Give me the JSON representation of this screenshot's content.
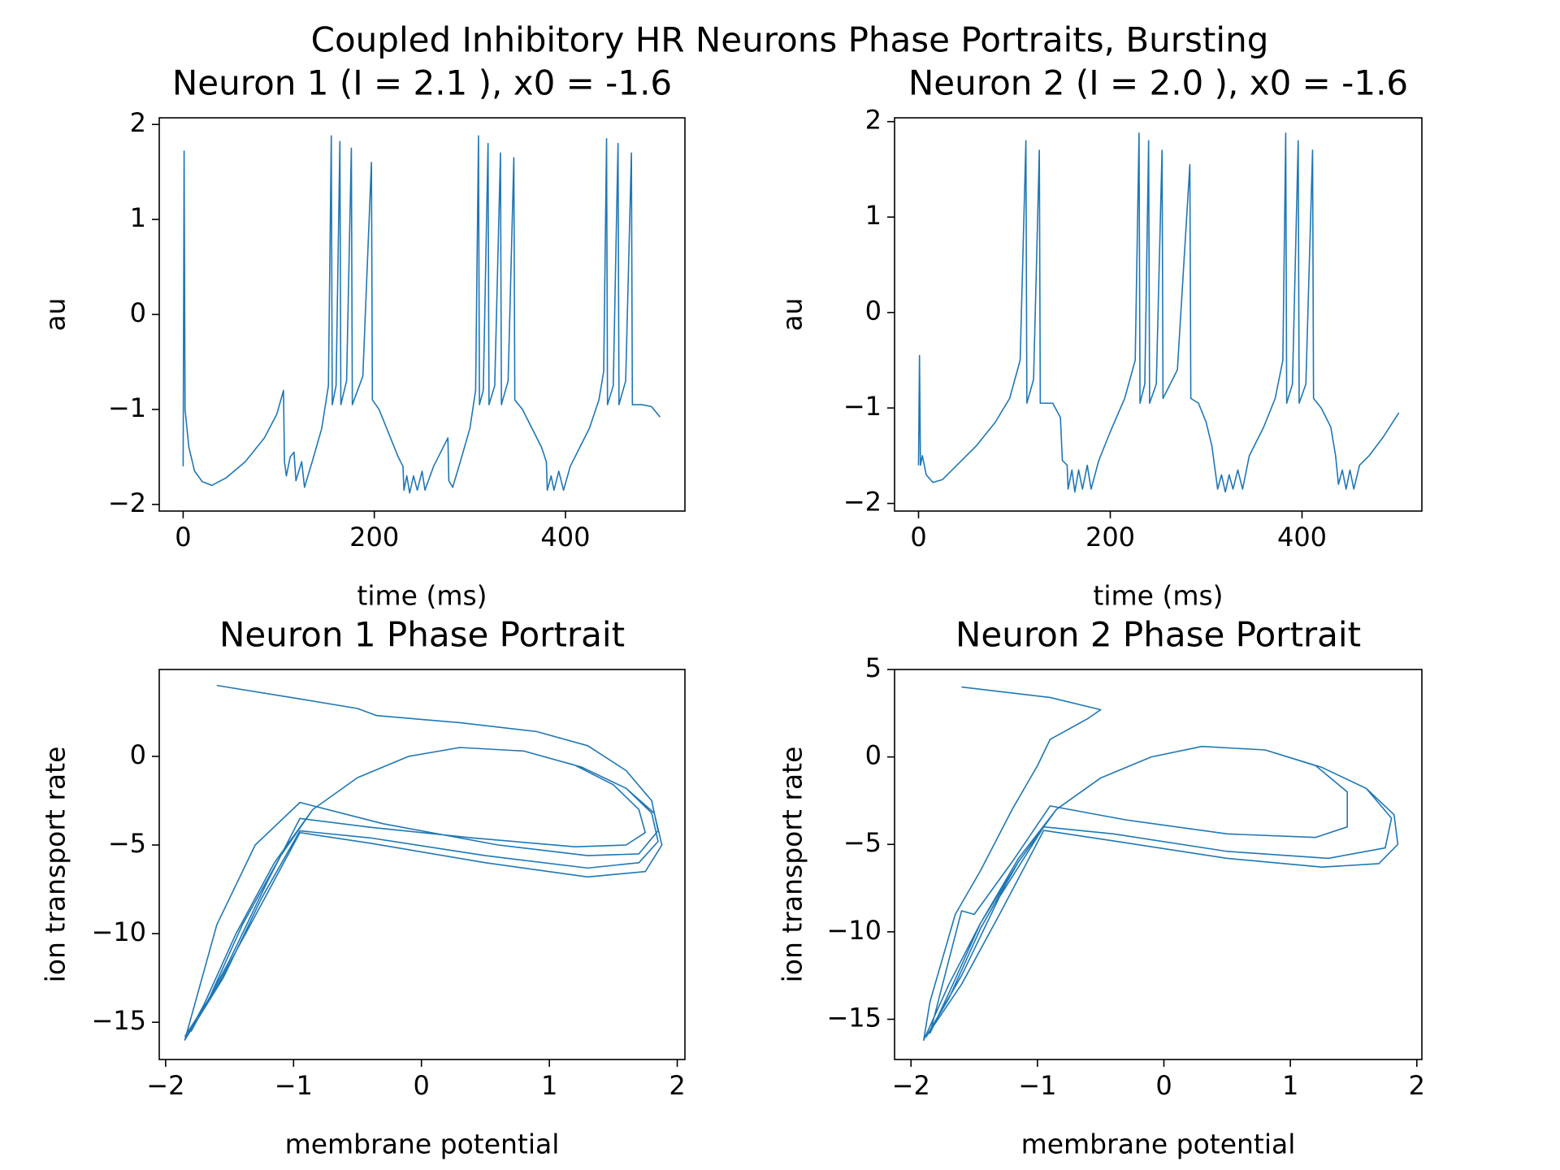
{
  "title": "Coupled Inhibitory HR Neurons Phase Portraits, Bursting",
  "chart_data": [
    {
      "type": "line",
      "title": "Neuron 1 (I = 2.1 ), x0 = -1.6",
      "xlabel": "time (ms)",
      "ylabel": "au",
      "x": [
        0,
        1,
        2,
        6,
        12,
        20,
        30,
        45,
        65,
        85,
        98,
        105,
        106,
        108,
        112,
        116,
        118,
        124,
        127,
        135,
        145,
        152,
        155,
        156,
        160,
        164,
        165,
        171,
        176,
        177,
        188,
        197,
        198,
        205,
        215,
        225,
        230,
        231,
        234,
        237,
        241,
        245,
        250,
        253,
        262,
        272,
        277,
        278,
        282,
        290,
        300,
        306,
        309,
        310,
        314,
        319,
        320,
        326,
        332,
        333,
        340,
        346,
        347,
        355,
        365,
        375,
        380,
        381,
        385,
        388,
        393,
        398,
        405,
        415,
        425,
        435,
        440,
        443,
        444,
        450,
        455,
        456,
        463,
        469,
        470,
        480,
        490,
        499
      ],
      "series": [
        {
          "color": "#1f77b4",
          "values": [
            -1.6,
            1.72,
            -1.0,
            -1.4,
            -1.65,
            -1.76,
            -1.8,
            -1.72,
            -1.55,
            -1.3,
            -1.05,
            -0.8,
            -1.55,
            -1.7,
            -1.5,
            -1.45,
            -1.75,
            -1.55,
            -1.82,
            -1.55,
            -1.2,
            -0.75,
            1.88,
            -0.95,
            -0.75,
            1.82,
            -0.95,
            -0.7,
            1.75,
            -0.95,
            -0.65,
            1.6,
            -0.9,
            -1.0,
            -1.25,
            -1.5,
            -1.6,
            -1.85,
            -1.7,
            -1.88,
            -1.7,
            -1.85,
            -1.65,
            -1.85,
            -1.6,
            -1.4,
            -1.3,
            -1.75,
            -1.82,
            -1.55,
            -1.2,
            -0.8,
            1.88,
            -0.95,
            -0.8,
            1.8,
            -0.95,
            -0.75,
            1.7,
            -0.95,
            -0.7,
            1.65,
            -0.9,
            -1.0,
            -1.2,
            -1.4,
            -1.55,
            -1.85,
            -1.7,
            -1.85,
            -1.65,
            -1.85,
            -1.6,
            -1.4,
            -1.2,
            -0.9,
            -0.6,
            1.85,
            -0.95,
            -0.75,
            1.8,
            -0.95,
            -0.7,
            1.7,
            -0.95,
            -0.95,
            -0.97,
            -1.08
          ]
        }
      ],
      "xlim": [
        -25,
        525
      ],
      "ylim": [
        -2.07,
        2.07
      ],
      "xticks": [
        0,
        200,
        400
      ],
      "yticks": [
        {
          "value": -2,
          "label": "−2"
        },
        {
          "value": -1,
          "label": "−1"
        },
        0,
        1,
        2
      ]
    },
    {
      "type": "line",
      "title": "Neuron 2 (I = 2.0 ), x0 = -1.6",
      "xlabel": "time (ms)",
      "ylabel": "au",
      "x": [
        0,
        1,
        2,
        4,
        8,
        15,
        25,
        40,
        60,
        80,
        95,
        106,
        112,
        113,
        120,
        126,
        127,
        140,
        148,
        150,
        155,
        156,
        160,
        163,
        167,
        171,
        176,
        180,
        188,
        200,
        215,
        226,
        230,
        231,
        236,
        240,
        241,
        248,
        254,
        255,
        270,
        283,
        284,
        292,
        300,
        306,
        310,
        312,
        316,
        320,
        324,
        328,
        333,
        338,
        345,
        360,
        372,
        380,
        383,
        384,
        390,
        396,
        397,
        404,
        411,
        412,
        420,
        430,
        435,
        438,
        442,
        446,
        450,
        454,
        460,
        470,
        485,
        501
      ],
      "series": [
        {
          "color": "#1f77b4",
          "values": [
            -1.6,
            -0.45,
            -1.6,
            -1.5,
            -1.7,
            -1.78,
            -1.75,
            -1.6,
            -1.4,
            -1.15,
            -0.9,
            -0.5,
            1.8,
            -0.95,
            -0.7,
            1.7,
            -0.95,
            -0.95,
            -1.1,
            -1.55,
            -1.6,
            -1.85,
            -1.65,
            -1.88,
            -1.65,
            -1.85,
            -1.6,
            -1.85,
            -1.55,
            -1.25,
            -0.9,
            -0.5,
            1.88,
            -0.95,
            -0.75,
            1.8,
            -0.95,
            -0.75,
            1.7,
            -0.9,
            -0.6,
            1.55,
            -0.9,
            -0.95,
            -1.15,
            -1.4,
            -1.7,
            -1.85,
            -1.7,
            -1.88,
            -1.7,
            -1.85,
            -1.65,
            -1.85,
            -1.5,
            -1.2,
            -0.9,
            -0.5,
            1.88,
            -0.95,
            -0.75,
            1.8,
            -0.95,
            -0.75,
            1.7,
            -0.9,
            -1.0,
            -1.2,
            -1.5,
            -1.8,
            -1.65,
            -1.85,
            -1.65,
            -1.85,
            -1.6,
            -1.5,
            -1.3,
            -1.05
          ]
        }
      ],
      "xlim": [
        -25,
        525
      ],
      "ylim": [
        -2.08,
        2.04
      ],
      "xticks": [
        0,
        200,
        400
      ],
      "yticks": [
        {
          "value": -2,
          "label": "−2"
        },
        {
          "value": -1,
          "label": "−1"
        },
        0,
        1,
        2
      ]
    },
    {
      "type": "line",
      "title": "Neuron 1 Phase Portrait",
      "xlabel": "membrane potential",
      "ylabel": "ion transport rate",
      "x": [
        -1.6,
        -1.0,
        -0.5,
        -0.35,
        0.3,
        0.9,
        1.3,
        1.6,
        1.8,
        1.85,
        1.7,
        1.3,
        0.6,
        -0.3,
        -0.95,
        -1.3,
        -1.6,
        -1.85,
        -1.7,
        -1.45,
        -1.15,
        -0.85,
        -0.5,
        -0.1,
        0.3,
        0.8,
        1.2,
        1.5,
        1.7,
        1.75,
        1.6,
        1.2,
        0.4,
        -0.4,
        -0.95,
        -1.2,
        -1.5,
        -1.8,
        -1.65,
        -1.4,
        -1.1,
        -0.85,
        -0.5,
        -0.1,
        0.3,
        0.8,
        1.25,
        1.6,
        1.8,
        1.85,
        1.7,
        1.3,
        0.5,
        -0.4,
        -0.95,
        -1.25,
        -1.55,
        -1.85,
        -1.7,
        -1.45,
        -1.15,
        -0.85,
        -0.5,
        -0.1,
        0.3,
        0.8,
        1.25,
        1.6,
        1.82,
        1.88,
        1.75,
        1.3,
        0.5,
        -0.4,
        -0.95,
        -1.3,
        -1.6,
        -1.85
      ],
      "series": [
        {
          "color": "#1f77b4",
          "values": [
            4.0,
            3.3,
            2.7,
            2.3,
            1.9,
            1.4,
            0.6,
            -0.8,
            -2.5,
            -4.2,
            -5.5,
            -5.6,
            -5.0,
            -3.8,
            -2.6,
            -5,
            -9.5,
            -16,
            -14,
            -10,
            -6,
            -3,
            -1.2,
            0,
            0.5,
            0.3,
            -0.5,
            -1.6,
            -3.0,
            -4.3,
            -5.0,
            -5.1,
            -4.6,
            -4.0,
            -3.5,
            -7,
            -11.5,
            -15.5,
            -13.5,
            -9.5,
            -5.6,
            -3,
            -1.2,
            0,
            0.5,
            0.3,
            -0.6,
            -1.8,
            -3.2,
            -4.8,
            -6,
            -6.3,
            -5.6,
            -4.6,
            -4.2,
            -8,
            -12.5,
            -16,
            -14,
            -10,
            -6,
            -3,
            -1.2,
            0,
            0.5,
            0.3,
            -0.6,
            -1.8,
            -3.2,
            -5,
            -6.5,
            -6.8,
            -6.0,
            -4.9,
            -4.3,
            -9,
            -13,
            -15.8
          ]
        }
      ],
      "xlim": [
        -2.05,
        2.06
      ],
      "ylim": [
        -17.1,
        4.9
      ],
      "xticks": [
        {
          "value": -2,
          "label": "−2"
        },
        {
          "value": -1,
          "label": "−1"
        },
        0,
        1,
        2
      ],
      "yticks": [
        {
          "value": -15,
          "label": "−15"
        },
        {
          "value": -10,
          "label": "−10"
        },
        {
          "value": -5,
          "label": "−5"
        },
        0
      ]
    },
    {
      "type": "line",
      "title": "Neuron 2 Phase Portrait",
      "xlabel": "membrane potential",
      "ylabel": "ion transport rate",
      "x": [
        -1.6,
        -0.9,
        -0.5,
        -0.6,
        -0.9,
        -1.0,
        -1.2,
        -1.45,
        -1.65,
        -1.85,
        -1.9,
        -1.7,
        -1.45,
        -1.15,
        -0.85,
        -0.5,
        -0.1,
        0.3,
        0.8,
        1.2,
        1.45,
        1.45,
        1.2,
        0.5,
        -0.3,
        -0.9,
        -1.2,
        -1.5,
        -1.6,
        -1.85,
        -1.7,
        -1.45,
        -1.15,
        -0.85,
        -0.5,
        -0.1,
        0.3,
        0.8,
        1.25,
        1.6,
        1.8,
        1.75,
        1.3,
        0.5,
        -0.4,
        -0.95,
        -1.3,
        -1.6,
        -1.88,
        -1.7,
        -1.45,
        -1.15,
        -0.85,
        -0.5,
        -0.1,
        0.3,
        0.8,
        1.25,
        1.6,
        1.82,
        1.85,
        1.7,
        1.25,
        0.5,
        -0.4,
        -0.95,
        -1.3,
        -1.6,
        -1.88
      ],
      "series": [
        {
          "color": "#1f77b4",
          "values": [
            4.0,
            3.4,
            2.7,
            2.2,
            1.0,
            -0.5,
            -3,
            -6.5,
            -9,
            -14,
            -16.2,
            -13,
            -9.5,
            -6,
            -3,
            -1.2,
            0,
            0.6,
            0.4,
            -0.5,
            -2,
            -4,
            -4.6,
            -4.4,
            -3.6,
            -2.8,
            -6,
            -9,
            -8.8,
            -15.8,
            -13.5,
            -9.5,
            -5.8,
            -3,
            -1.2,
            0,
            0.6,
            0.4,
            -0.6,
            -1.8,
            -3.5,
            -5.2,
            -5.8,
            -5.4,
            -4.4,
            -4.0,
            -8,
            -12.5,
            -16,
            -13.8,
            -9.8,
            -6,
            -3,
            -1.2,
            0,
            0.6,
            0.4,
            -0.6,
            -1.8,
            -3.3,
            -5.0,
            -6.1,
            -6.3,
            -5.8,
            -4.8,
            -4.2,
            -9,
            -13,
            -16
          ]
        }
      ],
      "xlim": [
        -2.13,
        2.04
      ],
      "ylim": [
        -17.3,
        5.0
      ],
      "xticks": [
        {
          "value": -2,
          "label": "−2"
        },
        {
          "value": -1,
          "label": "−1"
        },
        0,
        1,
        2
      ],
      "yticks": [
        {
          "value": -15,
          "label": "−15"
        },
        {
          "value": -10,
          "label": "−10"
        },
        {
          "value": -5,
          "label": "−5"
        },
        0,
        5
      ]
    }
  ]
}
